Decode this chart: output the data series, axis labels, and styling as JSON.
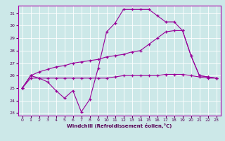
{
  "xlabel": "Windchill (Refroidissement éolien,°C)",
  "bg_color": "#cce8e8",
  "grid_color": "#ffffff",
  "line_color": "#990099",
  "marker": "+",
  "xlim": [
    -0.5,
    23.5
  ],
  "ylim": [
    22.8,
    31.6
  ],
  "yticks": [
    23,
    24,
    25,
    26,
    27,
    28,
    29,
    30,
    31
  ],
  "xticks": [
    0,
    1,
    2,
    3,
    4,
    5,
    6,
    7,
    8,
    9,
    10,
    11,
    12,
    13,
    14,
    15,
    16,
    17,
    18,
    19,
    20,
    21,
    22,
    23
  ],
  "lines": [
    {
      "x": [
        0,
        1,
        2,
        3,
        4,
        5,
        6,
        7,
        8,
        9,
        10,
        11,
        12,
        13,
        14,
        15,
        16,
        17,
        18,
        19,
        20,
        21,
        22,
        23
      ],
      "y": [
        25.0,
        26.0,
        25.8,
        25.5,
        24.8,
        24.2,
        24.8,
        23.1,
        24.1,
        26.6,
        29.5,
        30.2,
        31.3,
        31.3,
        31.3,
        31.3,
        30.8,
        30.3,
        30.3,
        29.6,
        27.6,
        26.0,
        25.9,
        25.8
      ]
    },
    {
      "x": [
        0,
        1,
        2,
        3,
        4,
        5,
        6,
        7,
        8,
        9,
        10,
        11,
        12,
        13,
        14,
        15,
        16,
        17,
        18,
        19,
        20,
        21,
        22,
        23
      ],
      "y": [
        25.0,
        25.8,
        25.8,
        25.8,
        25.8,
        25.8,
        25.8,
        25.8,
        25.8,
        25.8,
        25.8,
        25.9,
        26.0,
        26.0,
        26.0,
        26.0,
        26.0,
        26.1,
        26.1,
        26.1,
        26.0,
        25.9,
        25.8,
        25.8
      ]
    },
    {
      "x": [
        0,
        1,
        2,
        3,
        4,
        5,
        6,
        7,
        8,
        9,
        10,
        11,
        12,
        13,
        14,
        15,
        16,
        17,
        18,
        19,
        20,
        21,
        22,
        23
      ],
      "y": [
        25.0,
        26.0,
        26.3,
        26.5,
        26.7,
        26.8,
        27.0,
        27.1,
        27.2,
        27.3,
        27.5,
        27.6,
        27.7,
        27.9,
        28.0,
        28.5,
        29.0,
        29.5,
        29.6,
        29.6,
        27.6,
        26.0,
        25.9,
        25.8
      ]
    }
  ]
}
